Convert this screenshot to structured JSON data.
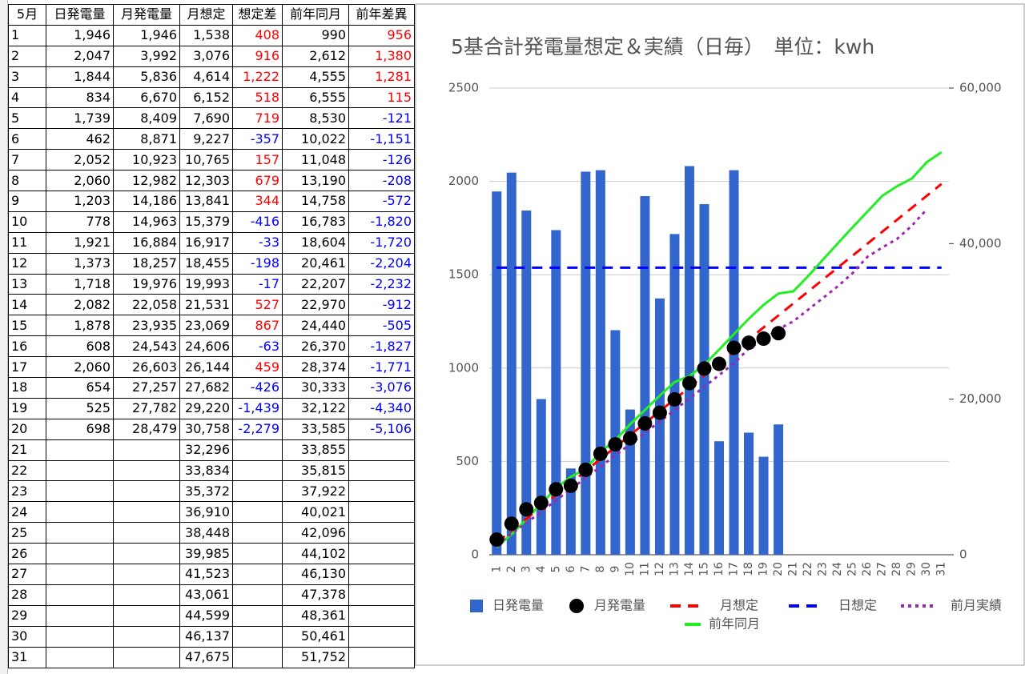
{
  "table": {
    "header": [
      "5月",
      "日発電量",
      "月発電量",
      "月想定",
      "想定差",
      "前年同月",
      "前年差異"
    ],
    "positive_color": "#ff0000",
    "negative_color": "#0000ff",
    "rows": [
      [
        "1",
        "1,946",
        "1,946",
        "1,538",
        "408",
        "990",
        "956"
      ],
      [
        "2",
        "2,047",
        "3,992",
        "3,076",
        "916",
        "2,612",
        "1,380"
      ],
      [
        "3",
        "1,844",
        "5,836",
        "4,614",
        "1,222",
        "4,555",
        "1,281"
      ],
      [
        "4",
        "834",
        "6,670",
        "6,152",
        "518",
        "6,555",
        "115"
      ],
      [
        "5",
        "1,739",
        "8,409",
        "7,690",
        "719",
        "8,530",
        "-121"
      ],
      [
        "6",
        "462",
        "8,871",
        "9,227",
        "-357",
        "10,022",
        "-1,151"
      ],
      [
        "7",
        "2,052",
        "10,923",
        "10,765",
        "157",
        "11,048",
        "-126"
      ],
      [
        "8",
        "2,060",
        "12,982",
        "12,303",
        "679",
        "13,190",
        "-208"
      ],
      [
        "9",
        "1,203",
        "14,186",
        "13,841",
        "344",
        "14,758",
        "-572"
      ],
      [
        "10",
        "778",
        "14,963",
        "15,379",
        "-416",
        "16,783",
        "-1,820"
      ],
      [
        "11",
        "1,921",
        "16,884",
        "16,917",
        "-33",
        "18,604",
        "-1,720"
      ],
      [
        "12",
        "1,373",
        "18,257",
        "18,455",
        "-198",
        "20,461",
        "-2,204"
      ],
      [
        "13",
        "1,718",
        "19,976",
        "19,993",
        "-17",
        "22,207",
        "-2,232"
      ],
      [
        "14",
        "2,082",
        "22,058",
        "21,531",
        "527",
        "22,970",
        "-912"
      ],
      [
        "15",
        "1,878",
        "23,935",
        "23,069",
        "867",
        "24,440",
        "-505"
      ],
      [
        "16",
        "608",
        "24,543",
        "24,606",
        "-63",
        "26,370",
        "-1,827"
      ],
      [
        "17",
        "2,060",
        "26,603",
        "26,144",
        "459",
        "28,374",
        "-1,771"
      ],
      [
        "18",
        "654",
        "27,257",
        "27,682",
        "-426",
        "30,333",
        "-3,076"
      ],
      [
        "19",
        "525",
        "27,782",
        "29,220",
        "-1,439",
        "32,122",
        "-4,340"
      ],
      [
        "20",
        "698",
        "28,479",
        "30,758",
        "-2,279",
        "33,585",
        "-5,106"
      ],
      [
        "21",
        null,
        null,
        "32,296",
        null,
        "33,855",
        null
      ],
      [
        "22",
        null,
        null,
        "33,834",
        null,
        "35,815",
        null
      ],
      [
        "23",
        null,
        null,
        "35,372",
        null,
        "37,922",
        null
      ],
      [
        "24",
        null,
        null,
        "36,910",
        null,
        "40,021",
        null
      ],
      [
        "25",
        null,
        null,
        "38,448",
        null,
        "42,096",
        null
      ],
      [
        "26",
        null,
        null,
        "39,985",
        null,
        "44,102",
        null
      ],
      [
        "27",
        null,
        null,
        "41,523",
        null,
        "46,130",
        null
      ],
      [
        "28",
        null,
        null,
        "43,061",
        null,
        "47,378",
        null
      ],
      [
        "29",
        null,
        null,
        "44,599",
        null,
        "48,361",
        null
      ],
      [
        "30",
        null,
        null,
        "46,137",
        null,
        "50,461",
        null
      ],
      [
        "31",
        null,
        null,
        "47,675",
        null,
        "51,752",
        null
      ]
    ]
  },
  "chart_data": {
    "type": "combo",
    "title": "5基合計発電量想定＆実績（日毎）　単位：kwh",
    "categories": [
      "1",
      "2",
      "3",
      "4",
      "5",
      "6",
      "7",
      "8",
      "9",
      "10",
      "11",
      "12",
      "13",
      "14",
      "15",
      "16",
      "17",
      "18",
      "19",
      "20",
      "21",
      "22",
      "23",
      "24",
      "25",
      "26",
      "27",
      "28",
      "29",
      "30",
      "31"
    ],
    "ylim": [
      0,
      2500
    ],
    "yticks": [
      0,
      500,
      1000,
      1500,
      2000,
      2500
    ],
    "y2lim": [
      0,
      60000
    ],
    "y2ticks": [
      0,
      {
        "value": 20000,
        "label": "20,000"
      },
      {
        "value": 40000,
        "label": "40,000"
      },
      {
        "value": 60000,
        "label": "60,000"
      }
    ],
    "grid": true,
    "series": [
      {
        "name": "日発電量",
        "color": "#3366cc",
        "style": "bar",
        "values": [
          1946,
          2047,
          1844,
          834,
          1739,
          462,
          2052,
          2060,
          1203,
          778,
          1921,
          1373,
          1718,
          2082,
          1878,
          608,
          2060,
          654,
          525,
          698,
          null,
          null,
          null,
          null,
          null,
          null,
          null,
          null,
          null,
          null,
          null
        ]
      },
      {
        "name": "月発電量",
        "color": "#000000",
        "style": "marker",
        "axis": "y2",
        "values": [
          1946,
          3992,
          5836,
          6670,
          8409,
          8871,
          10923,
          12982,
          14186,
          14963,
          16884,
          18257,
          19976,
          22058,
          23935,
          24543,
          26603,
          27257,
          27782,
          28479,
          null,
          null,
          null,
          null,
          null,
          null,
          null,
          null,
          null,
          null,
          null
        ]
      },
      {
        "name": "月想定",
        "color": "#ff0000",
        "style": "dashed",
        "axis": "y2",
        "values": [
          1538,
          3076,
          4614,
          6152,
          7690,
          9227,
          10765,
          12303,
          13841,
          15379,
          16917,
          18455,
          19993,
          21531,
          23069,
          24606,
          26144,
          27682,
          29220,
          30758,
          32296,
          33834,
          35372,
          36910,
          38448,
          39985,
          41523,
          43061,
          44599,
          46137,
          47675
        ]
      },
      {
        "name": "日想定",
        "color": "#0000ff",
        "style": "dashed",
        "values": [
          1538,
          1538,
          1538,
          1538,
          1538,
          1538,
          1538,
          1538,
          1538,
          1538,
          1538,
          1538,
          1538,
          1538,
          1538,
          1538,
          1538,
          1538,
          1538,
          1538,
          1538,
          1538,
          1538,
          1538,
          1538,
          1538,
          1538,
          1538,
          1538,
          1538,
          1538
        ]
      },
      {
        "name": "前月実績",
        "color": "#9c27b0",
        "style": "dotted",
        "axis": "y2",
        "values": [
          1300,
          2700,
          4100,
          5500,
          7000,
          8400,
          9900,
          11300,
          12800,
          14200,
          15700,
          17100,
          18600,
          20100,
          21600,
          23100,
          24600,
          26500,
          27700,
          29000,
          30000,
          31500,
          33000,
          34500,
          36200,
          38300,
          39500,
          40600,
          42300,
          44400,
          null
        ]
      },
      {
        "name": "前年同月",
        "color": "#22ee22",
        "style": "solid",
        "axis": "y2",
        "values": [
          990,
          2612,
          4555,
          6555,
          8530,
          10022,
          11048,
          13190,
          14758,
          16783,
          18604,
          20461,
          22207,
          22970,
          24440,
          26370,
          28374,
          30333,
          32122,
          33585,
          33855,
          35815,
          37922,
          40021,
          42096,
          44102,
          46130,
          47378,
          48361,
          50461,
          51752
        ]
      }
    ]
  }
}
